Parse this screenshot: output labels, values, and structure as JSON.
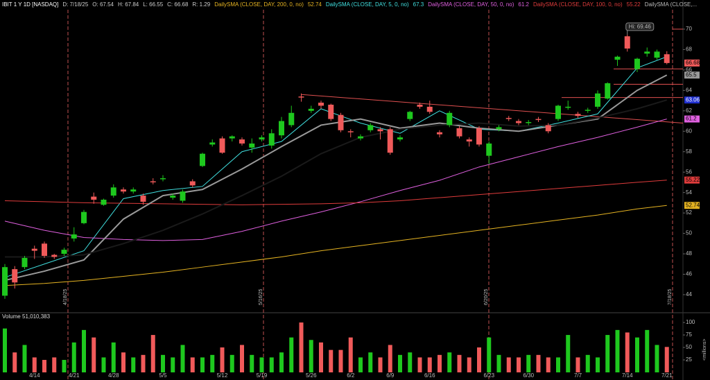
{
  "chart_data": {
    "type": "candlestick",
    "header": [
      {
        "text": "IBIT 1 Y 1D [NASDAQ]",
        "color": "#ffffff"
      },
      {
        "text": "D: 7/18/25",
        "color": "#cccccc"
      },
      {
        "text": "O: 67.54",
        "color": "#cccccc"
      },
      {
        "text": "H: 67.84",
        "color": "#cccccc"
      },
      {
        "text": "L: 66.55",
        "color": "#cccccc"
      },
      {
        "text": "C: 66.68",
        "color": "#cccccc"
      },
      {
        "text": "R: 1.29",
        "color": "#cccccc"
      }
    ],
    "header_tail": "DailySMA (CLOSE,...",
    "up_color": "#1ec81e",
    "down_color": "#f05a5a",
    "neutral_color": "#aaaaaa",
    "categories": [
      null,
      null,
      null,
      "4/14",
      null,
      null,
      null,
      "4/21",
      null,
      null,
      null,
      "4/28",
      null,
      null,
      null,
      null,
      "5/5",
      null,
      null,
      null,
      null,
      null,
      "5/12",
      null,
      null,
      null,
      "5/19",
      null,
      null,
      null,
      null,
      "5/26",
      null,
      null,
      null,
      "6/2",
      null,
      null,
      null,
      "6/9",
      null,
      null,
      null,
      "6/16",
      null,
      null,
      null,
      null,
      null,
      "6/23",
      null,
      null,
      null,
      "6/30",
      null,
      null,
      null,
      null,
      "7/7",
      null,
      null,
      null,
      null,
      "7/14",
      null,
      null,
      null,
      "7/21"
    ],
    "open": [
      43.9,
      46.5,
      46.7,
      48.5,
      49.0,
      47.9,
      48.0,
      49.5,
      51.0,
      53.6,
      52.8,
      53.7,
      54.3,
      54.1,
      53.7,
      55.1,
      55.3,
      53.5,
      53.2,
      55.1,
      56.6,
      58.7,
      59.3,
      59.3,
      59.2,
      58.4,
      59.2,
      58.6,
      59.6,
      60.6,
      63.4,
      62.0,
      62.8,
      62.6,
      61.6,
      60.0,
      59.3,
      60.1,
      60.2,
      60.2,
      59.2,
      61.2,
      62.6,
      62.4,
      59.9,
      60.6,
      60.3,
      59.2,
      60.3,
      57.6,
      60.2,
      61.3,
      61.0,
      60.8,
      61.2,
      60.6,
      61.2,
      62.3,
      61.7,
      62.0,
      62.4,
      63.2,
      67.0,
      69.3,
      66.1,
      67.6,
      67.2,
      67.54
    ],
    "high": [
      47.0,
      46.8,
      47.8,
      48.8,
      49.2,
      48.0,
      48.6,
      50.6,
      52.3,
      54.0,
      53.4,
      54.8,
      54.5,
      54.5,
      53.9,
      55.4,
      55.7,
      53.9,
      54.3,
      55.3,
      57.9,
      59.2,
      59.5,
      59.6,
      59.4,
      59.3,
      59.6,
      60.2,
      61.4,
      62.5,
      63.7,
      62.5,
      63.0,
      62.7,
      61.8,
      60.2,
      59.7,
      60.8,
      60.4,
      60.4,
      59.6,
      62.0,
      62.8,
      63.0,
      60.1,
      62.0,
      60.5,
      59.4,
      60.5,
      59.0,
      60.6,
      61.5,
      61.2,
      61.1,
      61.4,
      60.8,
      62.6,
      63.0,
      61.9,
      62.3,
      64.0,
      64.8,
      67.4,
      69.46,
      67.2,
      68.2,
      68.0,
      67.84
    ],
    "low": [
      43.6,
      44.6,
      46.5,
      47.5,
      47.6,
      47.5,
      47.8,
      49.2,
      50.9,
      52.9,
      52.7,
      53.5,
      53.9,
      53.9,
      52.8,
      54.8,
      55.1,
      53.3,
      53.0,
      54.5,
      56.5,
      58.5,
      57.8,
      59.0,
      58.6,
      57.9,
      59.0,
      58.3,
      59.3,
      60.4,
      62.9,
      61.8,
      62.2,
      61.0,
      59.9,
      59.4,
      59.1,
      59.9,
      59.2,
      57.7,
      59.0,
      61.0,
      62.2,
      61.7,
      59.4,
      60.4,
      59.3,
      58.5,
      58.5,
      56.8,
      60.0,
      61.0,
      60.6,
      60.6,
      60.9,
      59.8,
      61.0,
      62.1,
      61.3,
      61.8,
      62.2,
      63.1,
      66.4,
      67.8,
      65.8,
      67.3,
      67.0,
      66.55
    ],
    "close": [
      46.7,
      45.2,
      47.6,
      48.3,
      47.8,
      47.7,
      48.4,
      49.9,
      52.1,
      53.3,
      53.3,
      54.5,
      54.1,
      54.3,
      53.1,
      55.0,
      55.4,
      53.7,
      54.1,
      54.7,
      57.8,
      58.9,
      57.9,
      59.5,
      58.8,
      58.8,
      59.4,
      59.8,
      61.0,
      61.8,
      63.3,
      62.2,
      62.5,
      61.2,
      60.1,
      59.9,
      59.5,
      60.6,
      60.0,
      57.9,
      59.4,
      61.9,
      62.4,
      61.9,
      59.7,
      61.8,
      59.5,
      59.0,
      58.7,
      58.8,
      60.4,
      61.2,
      60.8,
      60.9,
      61.1,
      60.0,
      62.5,
      62.4,
      61.5,
      62.1,
      63.7,
      64.7,
      67.3,
      68.1,
      67.1,
      67.8,
      67.8,
      66.68
    ],
    "ylim": [
      42.3,
      71.9
    ],
    "yticks": [
      44,
      46,
      48,
      50,
      52,
      54,
      56,
      58,
      60,
      62,
      64,
      66,
      68,
      70
    ],
    "lines": [
      {
        "name": "DailySMA (CLOSE, DAY, 200, 0, no)",
        "color": "#e6b422",
        "x": [
          0,
          4,
          8,
          12,
          16,
          20,
          24,
          28,
          32,
          36,
          40,
          44,
          48,
          52,
          56,
          60,
          64,
          67
        ],
        "values": [
          44.9,
          45.1,
          45.4,
          45.8,
          46.2,
          46.7,
          47.2,
          47.7,
          48.3,
          48.8,
          49.3,
          49.8,
          50.3,
          50.8,
          51.3,
          51.8,
          52.4,
          52.74
        ]
      },
      {
        "name": "DailySMA (CLOSE, DAY, 5, 0, no)",
        "color": "#40e0e0",
        "x": [
          0,
          4,
          8,
          12,
          16,
          20,
          24,
          28,
          32,
          36,
          40,
          44,
          48,
          52,
          56,
          60,
          64,
          67
        ],
        "values": [
          45.7,
          47.0,
          48.3,
          53.4,
          54.2,
          54.6,
          58.0,
          59.0,
          62.2,
          60.8,
          59.8,
          62.0,
          60.2,
          60.0,
          60.8,
          61.7,
          66.2,
          67.3
        ]
      },
      {
        "name": "DailySMA (CLOSE, DAY, 50, 0, no)",
        "color": "#e060e0",
        "x": [
          0,
          4,
          8,
          12,
          16,
          20,
          24,
          28,
          32,
          36,
          40,
          44,
          48,
          52,
          56,
          60,
          64,
          67
        ],
        "values": [
          51.2,
          50.3,
          49.6,
          49.4,
          49.3,
          49.4,
          50.2,
          51.2,
          52.1,
          53.1,
          54.2,
          55.2,
          56.5,
          57.5,
          58.5,
          59.4,
          60.4,
          61.2
        ]
      },
      {
        "name": "DailySMA (CLOSE, DAY, 100, 0, no)",
        "color": "#e03c3c",
        "x": [
          0,
          4,
          8,
          12,
          16,
          20,
          24,
          28,
          32,
          36,
          40,
          44,
          48,
          52,
          56,
          60,
          64,
          67
        ],
        "values": [
          53.2,
          53.1,
          53.0,
          52.95,
          52.9,
          52.85,
          52.8,
          52.85,
          52.9,
          53.0,
          53.2,
          53.5,
          53.8,
          54.1,
          54.4,
          54.7,
          55.0,
          55.22
        ]
      },
      {
        "color": "#9a9a9a",
        "x": [
          0,
          4,
          8,
          12,
          16,
          20,
          24,
          28,
          32,
          36,
          40,
          44,
          48,
          52,
          56,
          60,
          64,
          67
        ],
        "values": [
          45.4,
          46.3,
          47.4,
          51.4,
          53.7,
          54.3,
          56.3,
          58.5,
          60.6,
          61.2,
          60.3,
          60.8,
          60.3,
          60.0,
          60.6,
          61.2,
          64.0,
          65.5
        ]
      },
      {
        "color": "#1a1a1a",
        "label_color": "#2030d0",
        "x": [
          0,
          4,
          8,
          12,
          16,
          20,
          24,
          28,
          32,
          36,
          40,
          44,
          48,
          52,
          56,
          60,
          64,
          67
        ],
        "values": [
          47.7,
          47.7,
          47.9,
          49.0,
          50.3,
          51.9,
          53.7,
          55.6,
          57.8,
          59.4,
          60.2,
          60.6,
          60.8,
          60.5,
          60.6,
          61.3,
          62.2,
          63.06
        ]
      }
    ],
    "trendline": [
      63.6,
      60.8
    ],
    "levels": [
      70,
      66.1,
      64.6,
      63.3
    ],
    "hi_label": "Hi: 69.46",
    "markers": [
      "4/18/25",
      "5/16/25",
      "6/20/25",
      "7/18/25"
    ],
    "volume": {
      "label": "Volume",
      "value_text": "51,010,383",
      "unit": "<millions>",
      "values": [
        88,
        40,
        55,
        30,
        25,
        30,
        25,
        60,
        85,
        70,
        30,
        60,
        40,
        30,
        35,
        75,
        35,
        30,
        55,
        30,
        30,
        35,
        50,
        35,
        55,
        35,
        30,
        30,
        40,
        70,
        100,
        65,
        60,
        45,
        45,
        70,
        30,
        40,
        30,
        55,
        35,
        40,
        30,
        30,
        35,
        40,
        35,
        30,
        50,
        70,
        35,
        30,
        30,
        35,
        35,
        30,
        30,
        75,
        30,
        35,
        30,
        75,
        85,
        80,
        70,
        85,
        55,
        51
      ],
      "ylim": [
        0,
        114
      ],
      "yticks": [
        25,
        50,
        75,
        100
      ]
    }
  }
}
